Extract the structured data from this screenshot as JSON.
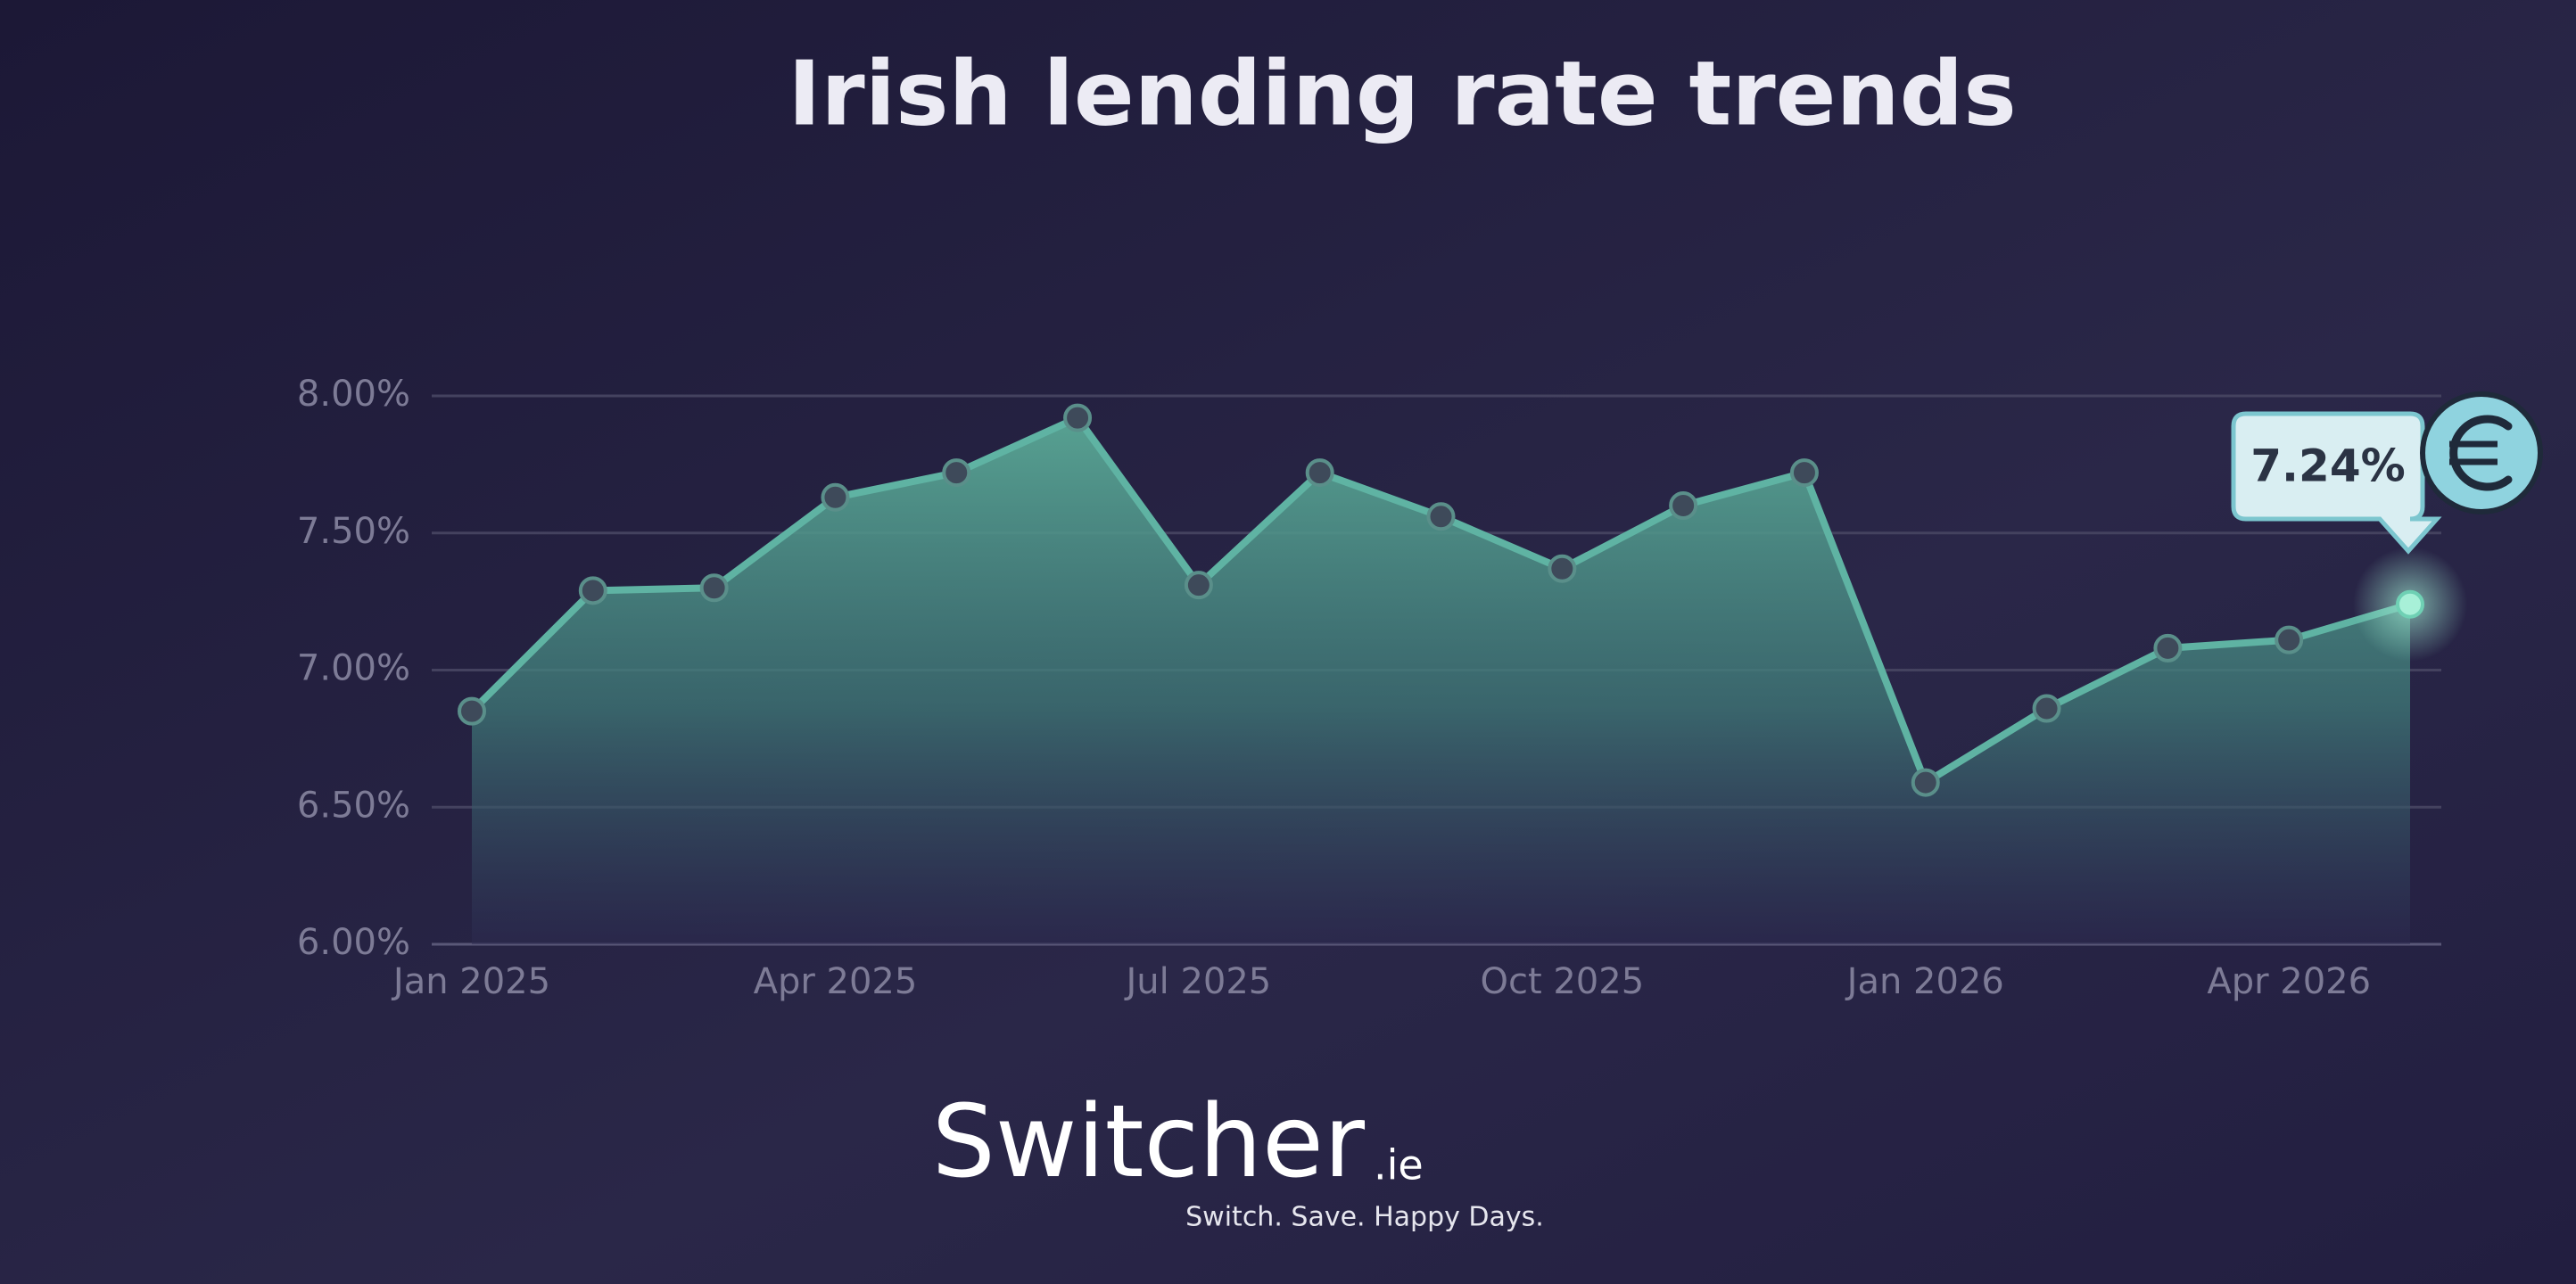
{
  "chart_data": {
    "type": "area",
    "title": "Irish lending rate trends",
    "categories": [
      "Jan 2025",
      null,
      null,
      "Apr 2025",
      null,
      null,
      "Jul 2025",
      null,
      null,
      "Oct 2025",
      null,
      null,
      "Jan 2026",
      null,
      null,
      "Apr 2026",
      null
    ],
    "values": [
      6.85,
      7.29,
      7.3,
      7.63,
      7.72,
      7.92,
      7.31,
      7.72,
      7.56,
      7.37,
      7.6,
      7.72,
      6.59,
      6.86,
      7.08,
      7.11,
      7.24
    ],
    "value_labels": [
      null,
      null,
      null,
      null,
      null,
      null,
      null,
      null,
      null,
      null,
      null,
      null,
      null,
      null,
      null,
      null,
      "7.24%"
    ],
    "color": "#5fb3a3",
    "ylim": [
      6,
      8
    ],
    "yticks": [
      {
        "value": 6,
        "label": "6.00%"
      },
      {
        "value": 6.5,
        "label": "6.50%"
      },
      {
        "value": 7,
        "label": "7.00%"
      },
      {
        "value": 7.5,
        "label": "7.50%"
      },
      {
        "value": 8,
        "label": "8.00%"
      }
    ],
    "grid": true
  },
  "branding": {
    "name": "Switcher",
    "domain": ".ie",
    "tagline": "Switch. Save. Happy Days."
  }
}
